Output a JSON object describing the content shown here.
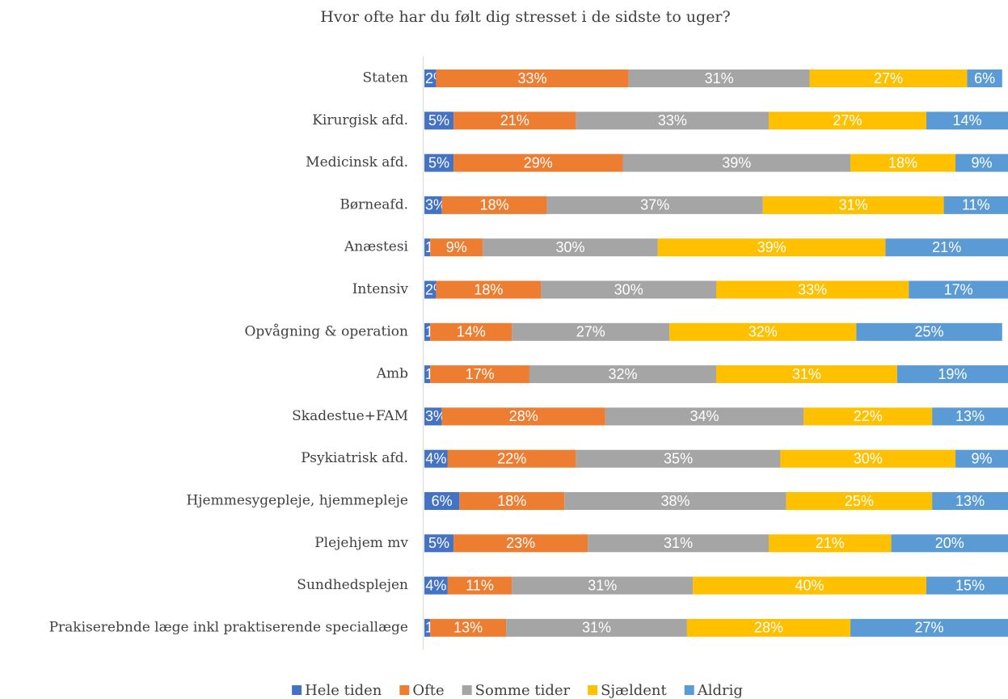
{
  "chart_data": {
    "type": "stacked-bar-horizontal",
    "title": "Hvor ofte har du følt dig stresset i de sidste to uger?",
    "categories": [
      "Staten",
      "Kirurgisk afd.",
      "Medicinsk afd.",
      "Børneafd.",
      "Anæstesi",
      "Intensiv",
      "Opvågning & operation",
      "Amb",
      "Skadestue+FAM",
      "Psykiatrisk afd.",
      "Hjemmesygepleje, hjemmepleje",
      "Plejehjem mv",
      "Sundhedsplejen",
      "Prakiserebnde læge inkl praktiserende speciallæge"
    ],
    "xlim": [
      0,
      100
    ],
    "legend": "bottom",
    "series": [
      {
        "name": "Hele tiden",
        "color": "#4472c4",
        "values": [
          2,
          5,
          5,
          3,
          1,
          2,
          1,
          1,
          3,
          4,
          6,
          5,
          4,
          1
        ],
        "value_labels": [
          "2%",
          "5%",
          "5%",
          "3%",
          "1%",
          "2%",
          "1%",
          "1%",
          "3%",
          "4%",
          "6%",
          "5%",
          "4%",
          "1%"
        ]
      },
      {
        "name": "Ofte",
        "color": "#ed7d31",
        "values": [
          33,
          21,
          29,
          18,
          9,
          18,
          14,
          17,
          28,
          22,
          18,
          23,
          11,
          13
        ],
        "value_labels": [
          "33%",
          "21%",
          "29%",
          "18%",
          "9%",
          "18%",
          "14%",
          "17%",
          "28%",
          "22%",
          "18%",
          "23%",
          "11%",
          "13%"
        ]
      },
      {
        "name": "Somme tider",
        "color": "#a5a5a5",
        "values": [
          31,
          33,
          39,
          37,
          30,
          30,
          27,
          32,
          34,
          35,
          38,
          31,
          31,
          31
        ],
        "value_labels": [
          "31%",
          "33%",
          "39%",
          "37%",
          "30%",
          "30%",
          "27%",
          "32%",
          "34%",
          "35%",
          "38%",
          "31%",
          "31%",
          "31%"
        ]
      },
      {
        "name": "Sjældent",
        "color": "#ffc000",
        "values": [
          27,
          27,
          18,
          31,
          39,
          33,
          32,
          31,
          22,
          30,
          25,
          21,
          40,
          28
        ],
        "value_labels": [
          "27%",
          "27%",
          "18%",
          "31%",
          "39%",
          "33%",
          "32%",
          "31%",
          "22%",
          "30%",
          "25%",
          "21%",
          "40%",
          "28%"
        ]
      },
      {
        "name": "Aldrig",
        "color": "#5b9bd5",
        "values": [
          6,
          14,
          9,
          11,
          21,
          17,
          25,
          19,
          13,
          9,
          13,
          20,
          15,
          27
        ],
        "value_labels": [
          "6%",
          "14%",
          "9%",
          "11%",
          "21%",
          "17%",
          "25%",
          "19%",
          "13%",
          "9%",
          "13%",
          "20%",
          "15%",
          "27%"
        ]
      }
    ]
  }
}
